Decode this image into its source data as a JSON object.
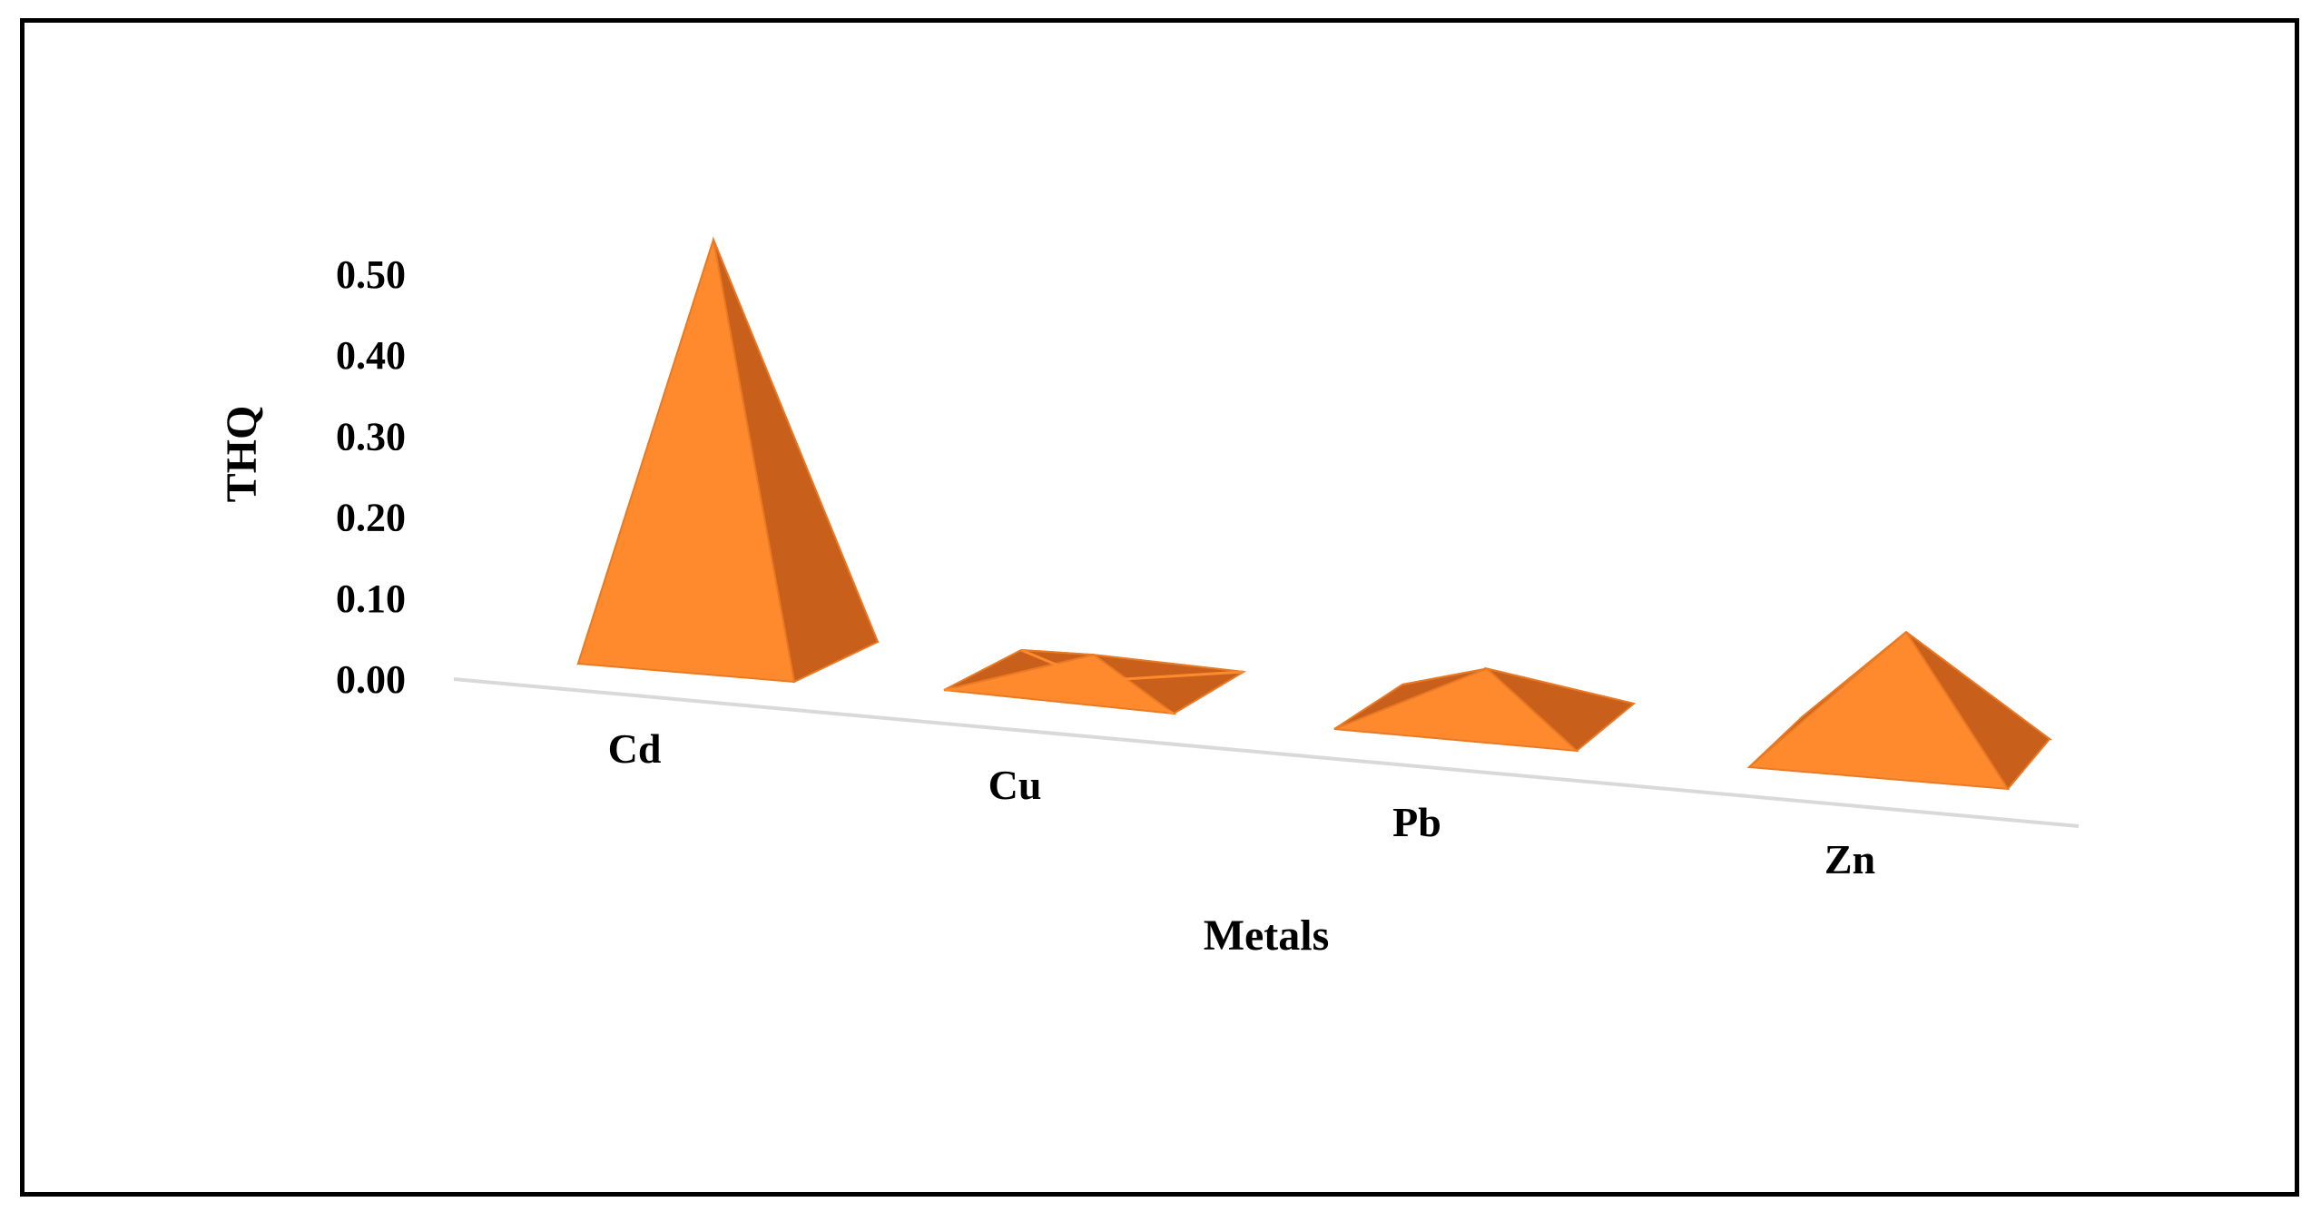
{
  "chart_data": {
    "type": "bar",
    "style": "3d-pyramid",
    "categories": [
      "Cd",
      "Cu",
      "Pb",
      "Zn"
    ],
    "values": [
      0.5,
      0.03,
      0.06,
      0.15
    ],
    "xlabel": "Metals",
    "ylabel": "THQ",
    "ylim": [
      0.0,
      0.5
    ],
    "y_ticks": [
      "0.00",
      "0.10",
      "0.20",
      "0.30",
      "0.40",
      "0.50"
    ],
    "grid": false,
    "legend": "none",
    "colors": {
      "front": "#FF8A2E",
      "side": "#C85F1A",
      "back": "#E3762A",
      "edge": "#E97A25",
      "baseline": "#D9D9D9"
    }
  }
}
